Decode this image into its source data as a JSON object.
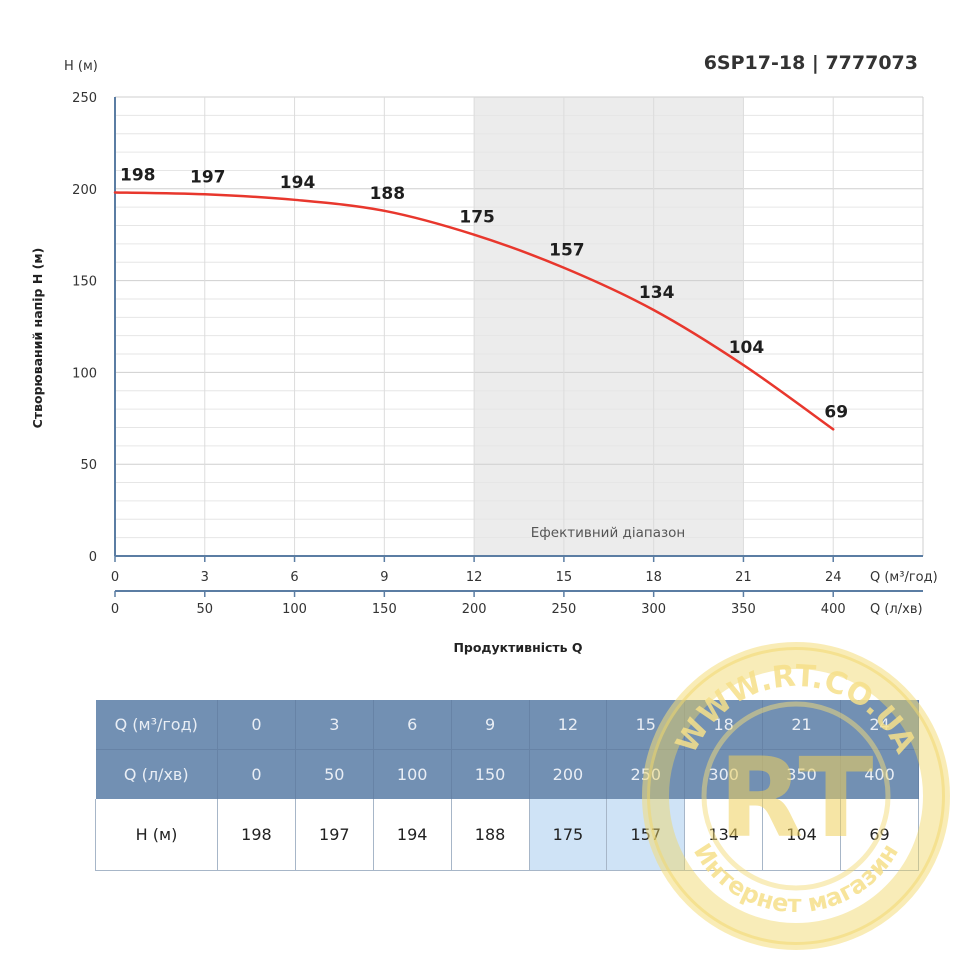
{
  "chart_data": {
    "type": "line",
    "title": "6SP17-18 | 7777073",
    "y_unit_label": "H (м)",
    "ylabel": "Створюваний напір H (м)",
    "xlabel": "Продуктивність Q",
    "x_axis_units": {
      "primary": "Q (м³/год)",
      "secondary": "Q (л/хв)"
    },
    "ylim": [
      0,
      250
    ],
    "y_ticks": [
      0,
      50,
      100,
      150,
      200,
      250
    ],
    "xlim": [
      0,
      27
    ],
    "x": [
      0,
      3,
      6,
      9,
      12,
      15,
      18,
      21,
      24
    ],
    "x_secondary": [
      0,
      50,
      100,
      150,
      200,
      250,
      300,
      350,
      400
    ],
    "values": [
      198,
      197,
      194,
      188,
      175,
      157,
      134,
      104,
      69
    ],
    "series_color": "#e8372d",
    "efficient_range": {
      "label": "Ефективний діапазон",
      "from": 12,
      "to": 21,
      "color": "#ececec"
    },
    "grid": true
  },
  "table": {
    "rows": [
      {
        "label": "Q (м³/год)",
        "cells": [
          "0",
          "3",
          "6",
          "9",
          "12",
          "15",
          "18",
          "21",
          "24"
        ]
      },
      {
        "label": "Q (л/хв)",
        "cells": [
          "0",
          "50",
          "100",
          "150",
          "200",
          "250",
          "300",
          "350",
          "400"
        ]
      },
      {
        "label": "H (м)",
        "cells": [
          "198",
          "197",
          "194",
          "188",
          "175",
          "157",
          "134",
          "104",
          "69"
        ]
      }
    ],
    "header_color": "#7290b3",
    "highlight_color": "#cfe3f6",
    "highlight_columns": [
      4,
      5
    ]
  },
  "watermark": {
    "top_text": "WWW.RT.CO.UA",
    "bottom_text": "Интернет магазин",
    "logo_text": "RT",
    "color": "#f2d66a"
  }
}
